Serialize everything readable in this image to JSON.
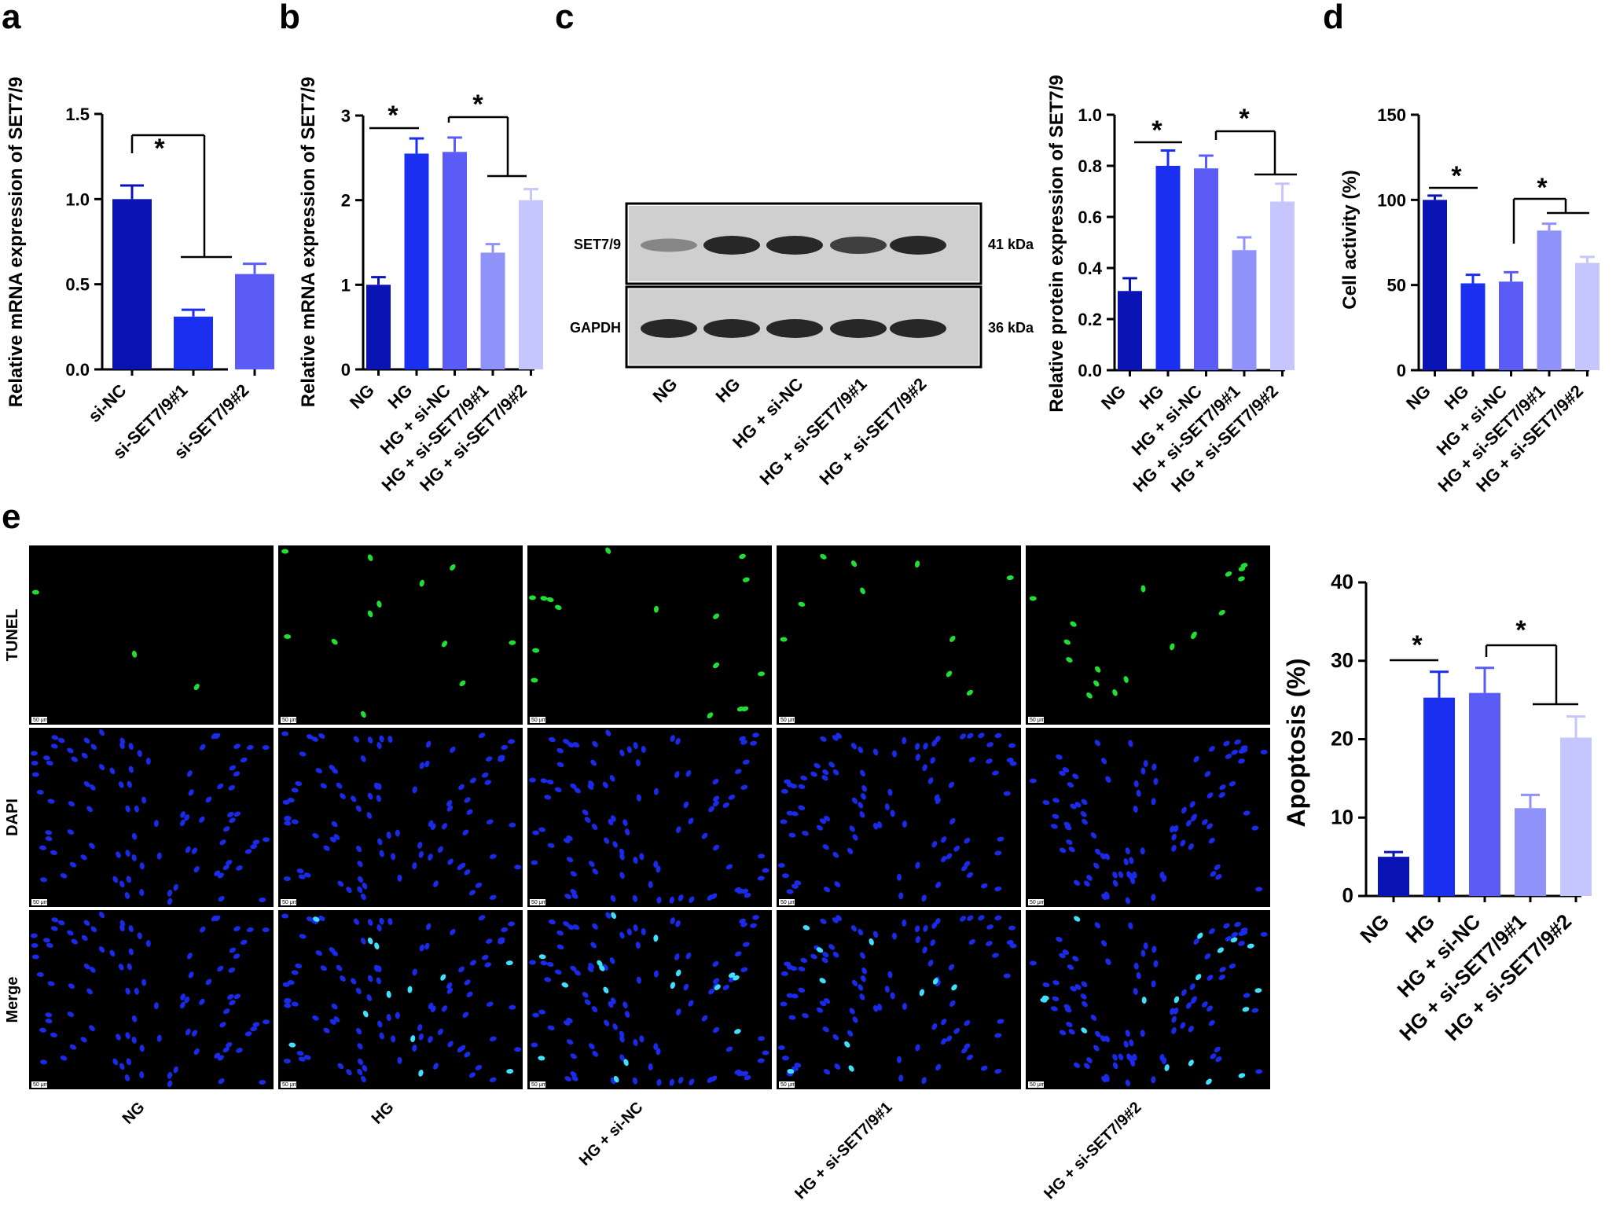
{
  "panels": {
    "a": "a",
    "b": "b",
    "c": "c",
    "d": "d",
    "e": "e"
  },
  "blot": {
    "bands": [
      {
        "name": "SET7/9",
        "size": "41 kDa",
        "intensity": [
          0.35,
          0.85,
          0.85,
          0.72,
          0.85
        ]
      },
      {
        "name": "GAPDH",
        "size": "36 kDa",
        "intensity": [
          0.85,
          0.85,
          0.85,
          0.85,
          0.85
        ]
      }
    ],
    "lanes": [
      "NG",
      "HG",
      "HG + si-NC",
      "HG + si-SET7/9#1",
      "HG + si-SET7/9#2"
    ]
  },
  "micrographs": {
    "rows": [
      "TUNEL",
      "DAPI",
      "Merge"
    ],
    "columns": [
      "NG",
      "HG",
      "HG + si-NC",
      "HG + si-SET7/9#1",
      "HG + si-SET7/9#2"
    ],
    "scale_bar": "50 μm"
  },
  "colors": {
    "bar1": "#0a14b4",
    "bar2": "#1a2ff0",
    "bar3": "#5a5cf5",
    "bar4": "#8f92f9",
    "bar5": "#c4c6fd",
    "tunel": "#22dd33",
    "dapi": "#1a2ae8",
    "merge_cyan": "#40e0ff"
  },
  "chart_data": [
    {
      "panel": "a",
      "type": "bar",
      "categories": [
        "si-NC",
        "si-SET7/9#1",
        "si-SET7/9#2"
      ],
      "values": [
        1.0,
        0.31,
        0.56
      ],
      "errors": [
        0.08,
        0.04,
        0.06
      ],
      "ylabel": "Relative mRNA expression of SET7/9",
      "ylim": [
        0,
        1.5
      ],
      "yticks": [
        "0.0",
        "0.5",
        "1.0",
        "1.5"
      ],
      "significance": "*"
    },
    {
      "panel": "b",
      "type": "bar",
      "categories": [
        "NG",
        "HG",
        "HG + si-NC",
        "HG + si-SET7/9#1",
        "HG + si-SET7/9#2"
      ],
      "values": [
        1.0,
        2.55,
        2.57,
        1.38,
        2.0
      ],
      "errors": [
        0.09,
        0.18,
        0.17,
        0.1,
        0.13
      ],
      "ylabel": "Relative mRNA expression of SET7/9",
      "ylim": [
        0,
        3
      ],
      "yticks": [
        "0",
        "1",
        "2",
        "3"
      ],
      "significance": [
        "*",
        "*"
      ]
    },
    {
      "panel": "c",
      "type": "bar",
      "categories": [
        "NG",
        "HG",
        "HG + si-NC",
        "HG + si-SET7/9#1",
        "HG + si-SET7/9#2"
      ],
      "values": [
        0.31,
        0.8,
        0.79,
        0.47,
        0.66
      ],
      "errors": [
        0.05,
        0.06,
        0.05,
        0.05,
        0.07
      ],
      "ylabel": "Relative protein expression of SET7/9",
      "ylim": [
        0,
        1.0
      ],
      "yticks": [
        "0.0",
        "0.2",
        "0.4",
        "0.6",
        "0.8",
        "1.0"
      ],
      "significance": [
        "*",
        "*"
      ]
    },
    {
      "panel": "d",
      "type": "bar",
      "categories": [
        "NG",
        "HG",
        "HG + si-NC",
        "HG + si-SET7/9#1",
        "HG + si-SET7/9#2"
      ],
      "values": [
        100,
        51,
        52,
        82,
        63
      ],
      "errors": [
        2.5,
        5,
        5.5,
        4,
        3.5
      ],
      "ylabel": "Cell activity (%)",
      "ylim": [
        0,
        150
      ],
      "yticks": [
        "0",
        "50",
        "100",
        "150"
      ],
      "significance": [
        "*",
        "*"
      ]
    },
    {
      "panel": "e",
      "type": "bar",
      "categories": [
        "NG",
        "HG",
        "HG + si-NC",
        "HG + si-SET7/9#1",
        "HG + si-SET7/9#2"
      ],
      "values": [
        5.0,
        25.3,
        25.9,
        11.2,
        20.2
      ],
      "errors": [
        0.6,
        3.3,
        3.2,
        1.7,
        2.7
      ],
      "ylabel": "Apoptosis (%)",
      "ylim": [
        0,
        40
      ],
      "yticks": [
        "0",
        "10",
        "20",
        "30",
        "40"
      ],
      "significance": [
        "*",
        "*"
      ]
    }
  ]
}
